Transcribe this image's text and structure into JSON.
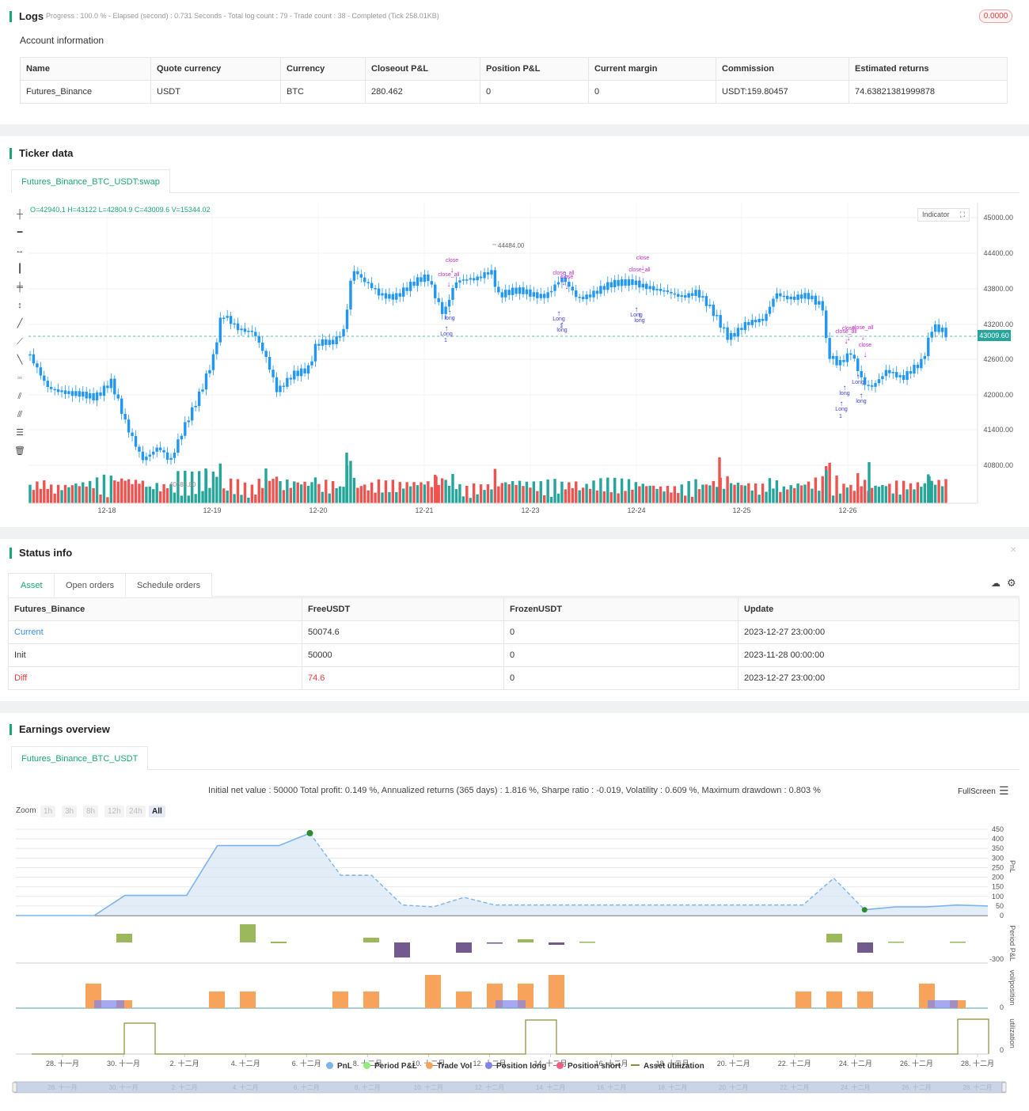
{
  "logs": {
    "title": "Logs",
    "status": "Progress : 100.0 % - Elapsed (second) : 0.731 Seconds - Total log count : 79 - Trade count : 38 - Completed (Tick 258.01KB)",
    "badge": "0.0000",
    "account_title": "Account information",
    "columns": [
      "Name",
      "Quote currency",
      "Currency",
      "Closeout P&L",
      "Position P&L",
      "Current margin",
      "Commission",
      "Estimated returns"
    ],
    "row": [
      "Futures_Binance",
      "USDT",
      "BTC",
      "280.462",
      "0",
      "0",
      "USDT:159.80457",
      "74.63821381999878"
    ]
  },
  "ticker": {
    "title": "Ticker data",
    "tab": "Futures_Binance_BTC_USDT:swap",
    "ohlc": "O=42940.1 H=43122 L=42804.9 C=43009.6 V=15344.02",
    "indicator_label": "Indicator",
    "price_tag": "43009.60",
    "high_label": "44484.00",
    "low_label": "40583.80",
    "y_ticks": [
      "45000.00",
      "44400.00",
      "43800.00",
      "43200.00",
      "42600.00",
      "42000.00",
      "41400.00",
      "40800.00"
    ],
    "x_ticks": [
      "12-18",
      "12-19",
      "12-20",
      "12-21",
      "12-23",
      "12-24",
      "12-25",
      "12-26"
    ],
    "markers": {
      "close": "close",
      "close_all": "close_all",
      "long": "long",
      "Long": "Long",
      "one": "1"
    },
    "colors": {
      "up": "#2196f3",
      "down_vol": "#ef5350",
      "up_vol": "#26a69a",
      "marker": "#c02ec6",
      "buy": "#3d3dd6"
    }
  },
  "status": {
    "title": "Status info",
    "tabs": [
      "Asset",
      "Open orders",
      "Schedule orders"
    ],
    "columns": [
      "Futures_Binance",
      "FreeUSDT",
      "FrozenUSDT",
      "Update"
    ],
    "rows": [
      [
        "Current",
        "50074.6",
        "0",
        "2023-12-27 23:00:00"
      ],
      [
        "Init",
        "50000",
        "0",
        "2023-11-28 00:00:00"
      ],
      [
        "Diff",
        "74.6",
        "0",
        "2023-12-27 23:00:00"
      ]
    ]
  },
  "earnings": {
    "title": "Earnings overview",
    "tab": "Futures_Binance_BTC_USDT",
    "summary": "Initial net value : 50000 Total profit: 0.149 %, Annualized returns (365 days) : 1.816 %, Sharpe ratio : -0.019, Volatility : 0.609 %, Maximum drawdown : 0.803 %",
    "fullscreen": "FullScreen",
    "zoom_label": "Zoom",
    "zoom_buttons": [
      "1h",
      "3h",
      "8h",
      "12h",
      "24h",
      "All"
    ],
    "pnl_ticks": [
      "450",
      "400",
      "350",
      "300",
      "250",
      "200",
      "150",
      "100",
      "50",
      "0"
    ],
    "period_tick": "-300",
    "vol_tick": "0",
    "util_tick": "0",
    "axis_titles": [
      "PnL",
      "Period P&L",
      "vol/position",
      "utilization"
    ],
    "x_ticks": [
      "28. 十一月",
      "30. 十一月",
      "2. 十二月",
      "4. 十二月",
      "6. 十二月",
      "8. 十二月",
      "10. 十二月",
      "12. 十二月",
      "14. 十二月",
      "16. 十二月",
      "18. 十二月",
      "20. 十二月",
      "22. 十二月",
      "24. 十二月",
      "26. 十二月",
      "28. 十二月"
    ],
    "legend": [
      {
        "label": "PnL",
        "color": "#7cb5ec"
      },
      {
        "label": "Period P&L",
        "color": "#90ed7d"
      },
      {
        "label": "Trade Vol",
        "color": "#f7a35c"
      },
      {
        "label": "Position long",
        "color": "#8085e9"
      },
      {
        "label": "Position short",
        "color": "#f15c80"
      },
      {
        "label": "Asset utilization",
        "color": "#8d8d3a"
      }
    ],
    "pnl_values": [
      0,
      0,
      105,
      105,
      105,
      365,
      365,
      365,
      430,
      210,
      210,
      55,
      45,
      95,
      55,
      55,
      55,
      55,
      55,
      55,
      55,
      55,
      55,
      55,
      55,
      195,
      30,
      45,
      45,
      55,
      50
    ]
  }
}
